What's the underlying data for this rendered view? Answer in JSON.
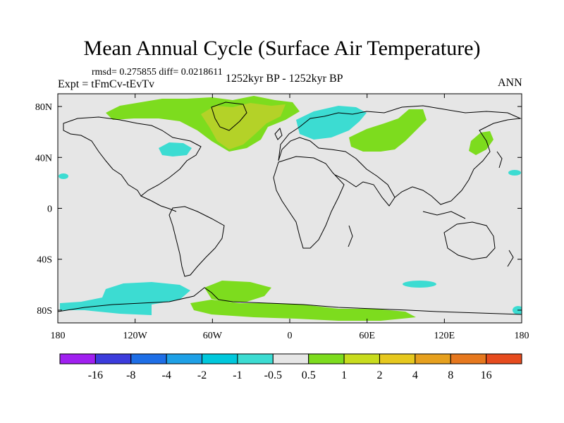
{
  "chart_data": {
    "type": "heatmap",
    "title": "Mean Annual Cycle (Surface Air Temperature)",
    "stats": "rmsd= 0.275855 diff= 0.0218611",
    "left_label": "Expt = tFmCv-tEvTv",
    "center_label": "1252kyr BP - 1252kyr BP",
    "right_label": "ANN",
    "x_ticks": [
      "180",
      "120W",
      "60W",
      "0",
      "60E",
      "120E",
      "180"
    ],
    "y_ticks": [
      "80N",
      "40N",
      "0",
      "40S",
      "80S"
    ],
    "xlim": [
      -180,
      180
    ],
    "ylim": [
      -90,
      90
    ],
    "colorbar": {
      "labels": [
        "-16",
        "-8",
        "-4",
        "-2",
        "-1",
        "-0.5",
        "0.5",
        "1",
        "2",
        "4",
        "8",
        "16"
      ],
      "colors": [
        "#a020f0",
        "#3c3cdc",
        "#1e6ee6",
        "#1ea0e6",
        "#00c8dc",
        "#3cdcd2",
        "#e6e6e6",
        "#7ddc1e",
        "#c8dc1e",
        "#e6c81e",
        "#e6a01e",
        "#e6781e",
        "#e64b1e"
      ]
    },
    "anomaly_regions": [
      {
        "name": "north-atlantic-greenland",
        "level": "1 to 2",
        "color": "#b4d228"
      },
      {
        "name": "arctic-band",
        "level": "0.5 to 1",
        "color": "#7ddc1e"
      },
      {
        "name": "scandinavia-baltic",
        "level": "-1 to -0.5",
        "color": "#3cdcd2"
      },
      {
        "name": "north-america-east",
        "level": "-1 to -0.5",
        "color": "#3cdcd2"
      },
      {
        "name": "central-asia",
        "level": "0.5 to 1",
        "color": "#7ddc1e"
      },
      {
        "name": "east-asia",
        "level": "0.5 to 1",
        "color": "#7ddc1e"
      },
      {
        "name": "southern-ocean-pacific",
        "level": "-1 to -0.5",
        "color": "#3cdcd2"
      },
      {
        "name": "southern-ocean-atlantic",
        "level": "0.5 to 1",
        "color": "#7ddc1e"
      },
      {
        "name": "antarctic-coast",
        "level": "0.5 to 1",
        "color": "#7ddc1e"
      }
    ]
  }
}
